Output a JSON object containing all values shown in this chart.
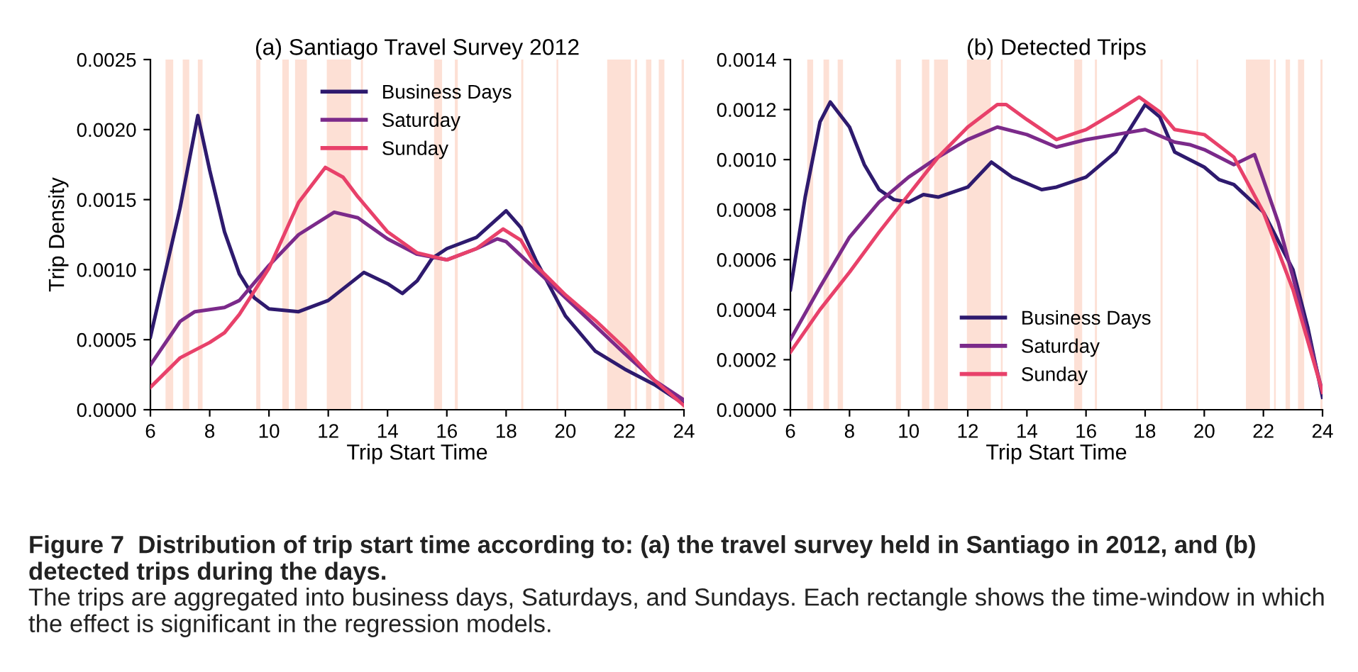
{
  "chart_data": [
    {
      "type": "line",
      "title": "(a) Santiago Travel Survey 2012",
      "xlabel": "Trip Start Time",
      "ylabel": "Trip Density",
      "xlim": [
        6,
        24
      ],
      "xticks": [
        6,
        8,
        10,
        12,
        14,
        16,
        18,
        20,
        22,
        24
      ],
      "ylim": [
        0,
        0.0025
      ],
      "yticks": [
        {
          "value": 0,
          "label": "0.0000"
        },
        {
          "value": 0.0005,
          "label": "0.0005"
        },
        {
          "value": 0.001,
          "label": "0.0010"
        },
        {
          "value": 0.0015,
          "label": "0.0015"
        },
        {
          "value": 0.002,
          "label": "0.0020"
        },
        {
          "value": 0.0025,
          "label": "0.0025"
        }
      ],
      "legend": "top",
      "marker": "none",
      "line_style": "solid",
      "series": [
        {
          "name": "Business Days",
          "color": "#2e1a6e",
          "x": [
            6,
            7,
            7.6,
            8,
            8.5,
            9,
            9.5,
            10,
            11,
            12,
            13.2,
            14,
            14.5,
            15,
            15.5,
            16,
            17,
            18,
            18.5,
            19,
            20,
            21,
            22,
            23,
            24
          ],
          "values": [
            0.00052,
            0.00144,
            0.0021,
            0.00171,
            0.00127,
            0.00097,
            0.0008,
            0.00072,
            0.0007,
            0.00078,
            0.00098,
            0.0009,
            0.00083,
            0.00092,
            0.00108,
            0.00115,
            0.00123,
            0.00142,
            0.0013,
            0.00107,
            0.00067,
            0.00042,
            0.00029,
            0.00018,
            4e-05
          ]
        },
        {
          "name": "Saturday",
          "color": "#7b2a8a",
          "x": [
            6,
            7,
            7.5,
            8.5,
            9,
            10,
            11,
            12.2,
            13,
            14,
            15,
            16,
            17,
            17.7,
            18,
            19,
            20,
            21,
            22,
            23,
            24
          ],
          "values": [
            0.00032,
            0.00063,
            0.0007,
            0.00073,
            0.00078,
            0.00103,
            0.00125,
            0.00141,
            0.00137,
            0.00122,
            0.00111,
            0.00107,
            0.00115,
            0.00122,
            0.0012,
            0.001,
            0.0008,
            0.0006,
            0.0004,
            0.00021,
            7e-05
          ]
        },
        {
          "name": "Sunday",
          "color": "#e8416a",
          "x": [
            6,
            7,
            8,
            8.5,
            9,
            10,
            11,
            11.9,
            12.5,
            13,
            14,
            15,
            16,
            17,
            17.9,
            18.5,
            19,
            20,
            21,
            22,
            23,
            24
          ],
          "values": [
            0.00016,
            0.00037,
            0.00048,
            0.00055,
            0.00068,
            0.00101,
            0.00148,
            0.00173,
            0.00166,
            0.00152,
            0.00127,
            0.00112,
            0.00107,
            0.00115,
            0.00129,
            0.00121,
            0.00103,
            0.00082,
            0.00064,
            0.00044,
            0.00021,
            3e-05
          ]
        }
      ],
      "bands": [
        {
          "axis": "x",
          "from": 6.51,
          "to": 6.77,
          "color": "#fde0d5"
        },
        {
          "axis": "x",
          "from": 7.09,
          "to": 7.31,
          "color": "#fde0d5"
        },
        {
          "axis": "x",
          "from": 7.6,
          "to": 7.76,
          "color": "#fde0d5"
        },
        {
          "axis": "x",
          "from": 9.57,
          "to": 9.71,
          "color": "#fde0d5"
        },
        {
          "axis": "x",
          "from": 10.45,
          "to": 10.67,
          "color": "#fde0d5"
        },
        {
          "axis": "x",
          "from": 10.88,
          "to": 11.28,
          "color": "#fde0d5"
        },
        {
          "axis": "x",
          "from": 11.95,
          "to": 12.77,
          "color": "#fde0d5"
        },
        {
          "axis": "x",
          "from": 13.1,
          "to": 13.17,
          "color": "#fde0d5"
        },
        {
          "axis": "x",
          "from": 15.57,
          "to": 15.84,
          "color": "#fde0d5"
        },
        {
          "axis": "x",
          "from": 16.27,
          "to": 16.37,
          "color": "#fde0d5"
        },
        {
          "axis": "x",
          "from": 18.51,
          "to": 18.58,
          "color": "#fde0d5"
        },
        {
          "axis": "x",
          "from": 19.7,
          "to": 19.76,
          "color": "#fde0d5"
        },
        {
          "axis": "x",
          "from": 21.41,
          "to": 22.21,
          "color": "#fde0d5"
        },
        {
          "axis": "x",
          "from": 22.34,
          "to": 22.42,
          "color": "#fde0d5"
        },
        {
          "axis": "x",
          "from": 22.72,
          "to": 22.9,
          "color": "#fde0d5"
        },
        {
          "axis": "x",
          "from": 23.15,
          "to": 23.34,
          "color": "#fde0d5"
        },
        {
          "axis": "x",
          "from": 23.92,
          "to": 24,
          "color": "#fde0d5"
        }
      ],
      "annotations": [
        "Figure 7  Distribution of trip start time according to: (a) the travel survey held in Santiago in 2012, and (b) detected trips during the days.",
        "The trips are aggregated into business days, Saturdays, and Sundays. Each rectangle shows the time-window in which the effect is significant in the regression models."
      ]
    },
    {
      "type": "line",
      "title": "(b) Detected Trips",
      "xlabel": "Trip Start Time",
      "xlim": [
        6,
        24
      ],
      "xticks": [
        6,
        8,
        10,
        12,
        14,
        16,
        18,
        20,
        22,
        24
      ],
      "ylim": [
        0,
        0.0014
      ],
      "yticks": [
        {
          "value": 0,
          "label": "0.0000"
        },
        {
          "value": 0.0002,
          "label": "0.0002"
        },
        {
          "value": 0.0004,
          "label": "0.0004"
        },
        {
          "value": 0.0006,
          "label": "0.0006"
        },
        {
          "value": 0.0008,
          "label": "0.0008"
        },
        {
          "value": 0.001,
          "label": "0.0010"
        },
        {
          "value": 0.0012,
          "label": "0.0012"
        },
        {
          "value": 0.0014,
          "label": "0.0014"
        }
      ],
      "legend": "bottom",
      "marker": "none",
      "line_style": "solid",
      "series": [
        {
          "name": "Business Days",
          "color": "#2e1a6e",
          "x": [
            6,
            6.5,
            7,
            7.35,
            8,
            8.5,
            9,
            9.5,
            10,
            10.5,
            11,
            12,
            12.8,
            13.5,
            14.5,
            15,
            16,
            17,
            18,
            18.5,
            19,
            20,
            20.5,
            21,
            22,
            23,
            23.5,
            24
          ],
          "values": [
            0.00048,
            0.00085,
            0.00115,
            0.00123,
            0.00113,
            0.00098,
            0.00088,
            0.00084,
            0.00083,
            0.00086,
            0.00085,
            0.00089,
            0.00099,
            0.00093,
            0.00088,
            0.00089,
            0.00093,
            0.00103,
            0.00122,
            0.00117,
            0.00103,
            0.00097,
            0.00092,
            0.0009,
            0.00079,
            0.00056,
            0.00033,
            5e-05
          ]
        },
        {
          "name": "Saturday",
          "color": "#7b2a8a",
          "x": [
            6,
            7,
            8,
            9,
            10,
            11,
            12,
            13,
            14,
            15,
            16,
            17,
            18,
            19,
            19.5,
            20,
            21,
            21.7,
            22,
            22.5,
            23,
            24
          ],
          "values": [
            0.00028,
            0.00049,
            0.00069,
            0.00083,
            0.00093,
            0.00101,
            0.00108,
            0.00113,
            0.0011,
            0.00105,
            0.00108,
            0.0011,
            0.00112,
            0.00107,
            0.00106,
            0.00104,
            0.00098,
            0.00102,
            0.00092,
            0.00075,
            0.00053,
            7e-05
          ]
        },
        {
          "name": "Sunday",
          "color": "#e8416a",
          "x": [
            6,
            7,
            8,
            9,
            10,
            11,
            12,
            13,
            13.3,
            14,
            15,
            16,
            17,
            17.8,
            18.5,
            19,
            20,
            21,
            22,
            23,
            24
          ],
          "values": [
            0.00023,
            0.0004,
            0.00055,
            0.00071,
            0.00086,
            0.00101,
            0.00113,
            0.00122,
            0.00122,
            0.00116,
            0.00108,
            0.00112,
            0.00119,
            0.00125,
            0.00119,
            0.00112,
            0.0011,
            0.00101,
            0.00079,
            0.00048,
            7e-05
          ]
        }
      ],
      "bands": [
        {
          "axis": "x",
          "from": 6.57,
          "to": 6.77,
          "color": "#fde0d5"
        },
        {
          "axis": "x",
          "from": 7.12,
          "to": 7.31,
          "color": "#fde0d5"
        },
        {
          "axis": "x",
          "from": 7.6,
          "to": 7.78,
          "color": "#fde0d5"
        },
        {
          "axis": "x",
          "from": 9.57,
          "to": 9.74,
          "color": "#fde0d5"
        },
        {
          "axis": "x",
          "from": 10.45,
          "to": 10.7,
          "color": "#fde0d5"
        },
        {
          "axis": "x",
          "from": 10.86,
          "to": 11.33,
          "color": "#fde0d5"
        },
        {
          "axis": "x",
          "from": 11.97,
          "to": 12.78,
          "color": "#fde0d5"
        },
        {
          "axis": "x",
          "from": 13.12,
          "to": 13.18,
          "color": "#fde0d5"
        },
        {
          "axis": "x",
          "from": 15.6,
          "to": 15.87,
          "color": "#fde0d5"
        },
        {
          "axis": "x",
          "from": 16.3,
          "to": 16.37,
          "color": "#fde0d5"
        },
        {
          "axis": "x",
          "from": 18.52,
          "to": 18.59,
          "color": "#fde0d5"
        },
        {
          "axis": "x",
          "from": 19.74,
          "to": 19.79,
          "color": "#fde0d5"
        },
        {
          "axis": "x",
          "from": 21.41,
          "to": 22.22,
          "color": "#fde0d5"
        },
        {
          "axis": "x",
          "from": 22.36,
          "to": 22.42,
          "color": "#fde0d5"
        },
        {
          "axis": "x",
          "from": 22.75,
          "to": 22.9,
          "color": "#fde0d5"
        },
        {
          "axis": "x",
          "from": 23.17,
          "to": 23.38,
          "color": "#fde0d5"
        },
        {
          "axis": "x",
          "from": 23.93,
          "to": 24,
          "color": "#fde0d5"
        }
      ]
    }
  ]
}
